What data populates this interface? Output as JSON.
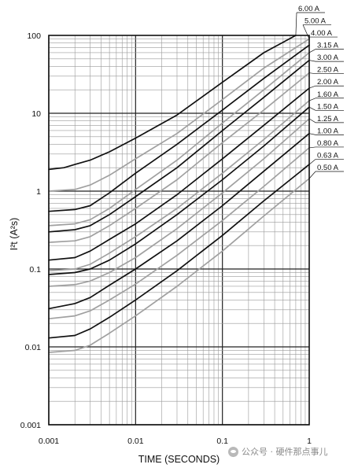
{
  "chart_data": {
    "type": "line",
    "title": "",
    "xlabel": "TIME (SECONDS)",
    "ylabel": "I²t (A²s)",
    "xscale": "log",
    "yscale": "log",
    "xlim": [
      0.001,
      1
    ],
    "ylim": [
      0.001,
      100
    ],
    "grid": true,
    "x_tick_labels": [
      "0.001",
      "0.01",
      "0.1",
      "1"
    ],
    "y_tick_labels": [
      "100",
      "10",
      "1",
      "0.1",
      "0.01",
      "0.001"
    ],
    "x_ticks": [
      0.001,
      0.01,
      0.1,
      1
    ],
    "y_ticks": [
      100,
      10,
      1,
      0.1,
      0.01,
      0.001
    ],
    "series": [
      {
        "name": "6.00 A",
        "color": "#111111",
        "points": [
          [
            0.001,
            1.9
          ],
          [
            0.0015,
            2.0
          ],
          [
            0.002,
            2.2
          ],
          [
            0.003,
            2.5
          ],
          [
            0.005,
            3.2
          ],
          [
            0.01,
            4.8
          ],
          [
            0.03,
            9.5
          ],
          [
            0.1,
            25
          ],
          [
            0.3,
            60
          ],
          [
            0.7,
            100
          ]
        ]
      },
      {
        "name": "5.00 A",
        "color": "#a0a0a0",
        "points": [
          [
            0.001,
            1.0
          ],
          [
            0.002,
            1.05
          ],
          [
            0.003,
            1.2
          ],
          [
            0.005,
            1.6
          ],
          [
            0.01,
            2.6
          ],
          [
            0.03,
            5.5
          ],
          [
            0.1,
            15
          ],
          [
            0.3,
            38
          ],
          [
            1,
            90
          ]
        ]
      },
      {
        "name": "4.00 A",
        "color": "#111111",
        "points": [
          [
            0.001,
            0.55
          ],
          [
            0.002,
            0.58
          ],
          [
            0.003,
            0.65
          ],
          [
            0.005,
            0.95
          ],
          [
            0.01,
            1.7
          ],
          [
            0.03,
            4.0
          ],
          [
            0.1,
            11
          ],
          [
            0.3,
            28
          ],
          [
            1,
            75
          ]
        ]
      },
      {
        "name": "3.15 A",
        "color": "#a0a0a0",
        "points": [
          [
            0.001,
            0.36
          ],
          [
            0.002,
            0.38
          ],
          [
            0.003,
            0.43
          ],
          [
            0.005,
            0.6
          ],
          [
            0.01,
            1.05
          ],
          [
            0.03,
            2.5
          ],
          [
            0.1,
            7.5
          ],
          [
            0.3,
            20
          ],
          [
            1,
            60
          ]
        ]
      },
      {
        "name": "3.00 A",
        "color": "#111111",
        "points": [
          [
            0.001,
            0.3
          ],
          [
            0.002,
            0.32
          ],
          [
            0.003,
            0.36
          ],
          [
            0.005,
            0.5
          ],
          [
            0.01,
            0.85
          ],
          [
            0.03,
            2.0
          ],
          [
            0.1,
            6.0
          ],
          [
            0.3,
            16
          ],
          [
            1,
            48
          ]
        ]
      },
      {
        "name": "2.50 A",
        "color": "#a0a0a0",
        "points": [
          [
            0.001,
            0.22
          ],
          [
            0.002,
            0.23
          ],
          [
            0.003,
            0.26
          ],
          [
            0.005,
            0.36
          ],
          [
            0.01,
            0.6
          ],
          [
            0.03,
            1.4
          ],
          [
            0.1,
            4.2
          ],
          [
            0.3,
            11
          ],
          [
            1,
            33
          ]
        ]
      },
      {
        "name": "2.00 A",
        "color": "#111111",
        "points": [
          [
            0.001,
            0.13
          ],
          [
            0.002,
            0.14
          ],
          [
            0.003,
            0.17
          ],
          [
            0.005,
            0.24
          ],
          [
            0.01,
            0.38
          ],
          [
            0.03,
            0.9
          ],
          [
            0.1,
            2.6
          ],
          [
            0.3,
            7
          ],
          [
            1,
            21
          ]
        ]
      },
      {
        "name": "1.60 A",
        "color": "#a0a0a0",
        "points": [
          [
            0.001,
            0.095
          ],
          [
            0.002,
            0.1
          ],
          [
            0.003,
            0.115
          ],
          [
            0.005,
            0.16
          ],
          [
            0.01,
            0.26
          ],
          [
            0.03,
            0.6
          ],
          [
            0.1,
            1.7
          ],
          [
            0.3,
            4.6
          ],
          [
            1,
            14.5
          ]
        ]
      },
      {
        "name": "1.50 A",
        "color": "#111111",
        "points": [
          [
            0.001,
            0.085
          ],
          [
            0.002,
            0.09
          ],
          [
            0.003,
            0.1
          ],
          [
            0.005,
            0.13
          ],
          [
            0.01,
            0.21
          ],
          [
            0.03,
            0.5
          ],
          [
            0.1,
            1.4
          ],
          [
            0.3,
            3.8
          ],
          [
            1,
            12
          ]
        ]
      },
      {
        "name": "1.25 A",
        "color": "#a0a0a0",
        "points": [
          [
            0.001,
            0.06
          ],
          [
            0.002,
            0.063
          ],
          [
            0.003,
            0.07
          ],
          [
            0.005,
            0.09
          ],
          [
            0.01,
            0.14
          ],
          [
            0.03,
            0.33
          ],
          [
            0.1,
            0.95
          ],
          [
            0.3,
            2.6
          ],
          [
            1,
            8.5
          ]
        ]
      },
      {
        "name": "1.00 A",
        "color": "#111111",
        "points": [
          [
            0.001,
            0.031
          ],
          [
            0.002,
            0.036
          ],
          [
            0.003,
            0.043
          ],
          [
            0.005,
            0.062
          ],
          [
            0.01,
            0.1
          ],
          [
            0.03,
            0.23
          ],
          [
            0.1,
            0.65
          ],
          [
            0.3,
            1.8
          ],
          [
            1,
            5.5
          ]
        ]
      },
      {
        "name": "0.80 A",
        "color": "#a0a0a0",
        "points": [
          [
            0.001,
            0.023
          ],
          [
            0.002,
            0.025
          ],
          [
            0.003,
            0.029
          ],
          [
            0.005,
            0.04
          ],
          [
            0.01,
            0.064
          ],
          [
            0.03,
            0.15
          ],
          [
            0.1,
            0.42
          ],
          [
            0.3,
            1.15
          ],
          [
            1,
            3.6
          ]
        ]
      },
      {
        "name": "0.63 A",
        "color": "#111111",
        "points": [
          [
            0.001,
            0.013
          ],
          [
            0.002,
            0.014
          ],
          [
            0.003,
            0.017
          ],
          [
            0.005,
            0.024
          ],
          [
            0.01,
            0.04
          ],
          [
            0.03,
            0.095
          ],
          [
            0.1,
            0.27
          ],
          [
            0.3,
            0.75
          ],
          [
            1,
            2.2
          ]
        ]
      },
      {
        "name": "0.50 A",
        "color": "#a0a0a0",
        "points": [
          [
            0.001,
            0.0085
          ],
          [
            0.002,
            0.009
          ],
          [
            0.003,
            0.0105
          ],
          [
            0.005,
            0.015
          ],
          [
            0.01,
            0.025
          ],
          [
            0.03,
            0.06
          ],
          [
            0.1,
            0.17
          ],
          [
            0.3,
            0.48
          ],
          [
            1,
            1.45
          ]
        ]
      }
    ]
  },
  "watermark": {
    "text": "公众号 · 硬件那点事儿",
    "icon": "wechat-icon"
  }
}
